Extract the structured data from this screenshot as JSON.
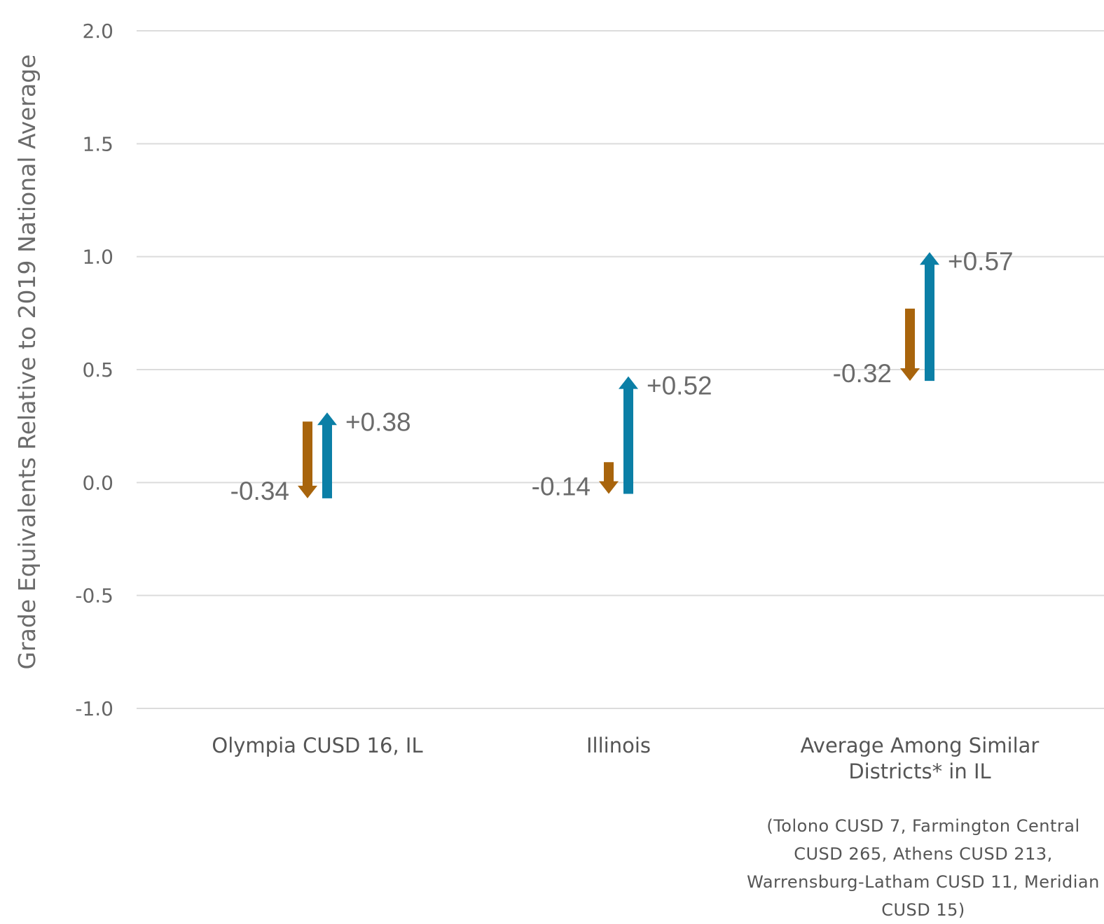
{
  "chart_data": {
    "type": "arrow",
    "ylabel": "Grade Equivalents Relative to 2019 National Average",
    "xlabel": "",
    "ylim": [
      -1.0,
      2.0
    ],
    "yticks": [
      "2.0",
      "1.5",
      "1.0",
      "0.5",
      "0.0",
      "-0.5",
      "-1.0"
    ],
    "ytick_values": [
      2.0,
      1.5,
      1.0,
      0.5,
      0.0,
      -0.5,
      -1.0
    ],
    "grid": true,
    "categories": [
      [
        "Olympia CUSD 16, IL"
      ],
      [
        "Illinois"
      ],
      [
        "Average Among Similar",
        "Districts* in IL"
      ]
    ],
    "series": [
      {
        "color": "#a8640c",
        "direction": "down",
        "start": [
          0.27,
          0.09,
          0.77
        ],
        "end": [
          -0.07,
          -0.05,
          0.45
        ],
        "labels": [
          "-0.34",
          "-0.14",
          "-0.32"
        ]
      },
      {
        "color": "#0b7fa6",
        "direction": "up",
        "start": [
          -0.07,
          -0.05,
          0.45
        ],
        "end": [
          0.31,
          0.47,
          1.02
        ],
        "labels": [
          "+0.38",
          "+0.52",
          "+0.57"
        ]
      }
    ],
    "footnote": [
      "(Tolono CUSD 7, Farmington Central",
      "CUSD 265, Athens CUSD 213,",
      "Warrensburg-Latham CUSD 11, Meridian",
      "CUSD 15)"
    ]
  }
}
